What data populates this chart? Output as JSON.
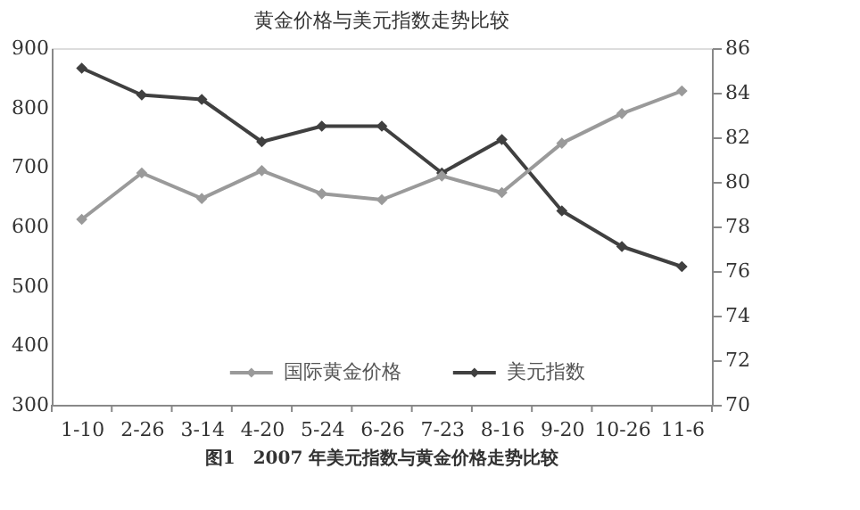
{
  "chart_data": {
    "type": "line",
    "title": "黄金价格与美元指数走势比较",
    "categories": [
      "1-10",
      "2-26",
      "3-14",
      "4-20",
      "5-24",
      "6-26",
      "7-23",
      "8-16",
      "9-20",
      "10-26",
      "11-6"
    ],
    "series": [
      {
        "name": "国际黄金价格",
        "color": "#9a9a9a",
        "values": [
          612,
          690,
          647,
          694,
          655,
          645,
          685,
          657,
          740,
          790,
          828
        ]
      },
      {
        "name": "美元指数",
        "color": "#404040",
        "axis": "y2",
        "values": [
          85.1,
          83.9,
          83.7,
          81.8,
          82.5,
          82.5,
          80.4,
          81.9,
          78.7,
          77.1,
          76.2
        ]
      }
    ],
    "ylim": [
      300,
      900
    ],
    "yticks": [
      300,
      400,
      500,
      600,
      700,
      800,
      900
    ],
    "y2lim": [
      70,
      86
    ],
    "y2ticks": [
      70,
      72,
      74,
      76,
      78,
      80,
      82,
      84,
      86
    ],
    "marker": "diamond",
    "line_style": "solid",
    "grid": false,
    "legend": "bottom",
    "annotations": [
      "图1　2007 年美元指数与黄金价格走势比较"
    ]
  }
}
